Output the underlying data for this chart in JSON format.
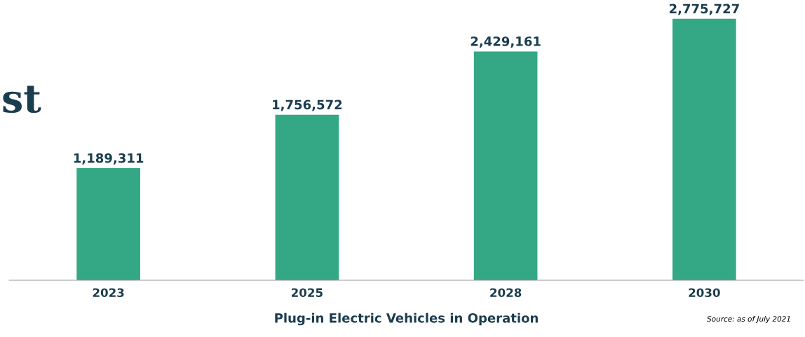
{
  "chart_data": {
    "type": "bar",
    "categories": [
      "2023",
      "2025",
      "2028",
      "2030"
    ],
    "values": [
      1189311,
      1756572,
      2429161,
      2775727
    ],
    "color": "#34a884",
    "data_labels": true,
    "value_labels": [
      "1,189,311",
      "1,756,572",
      "2,429,161",
      "2,775,727"
    ],
    "xlabel": "Plug-in Electric Vehicles in Operation",
    "annotations": [
      "st",
      "Source: as of July 2021"
    ],
    "grid": false,
    "legend": false
  }
}
